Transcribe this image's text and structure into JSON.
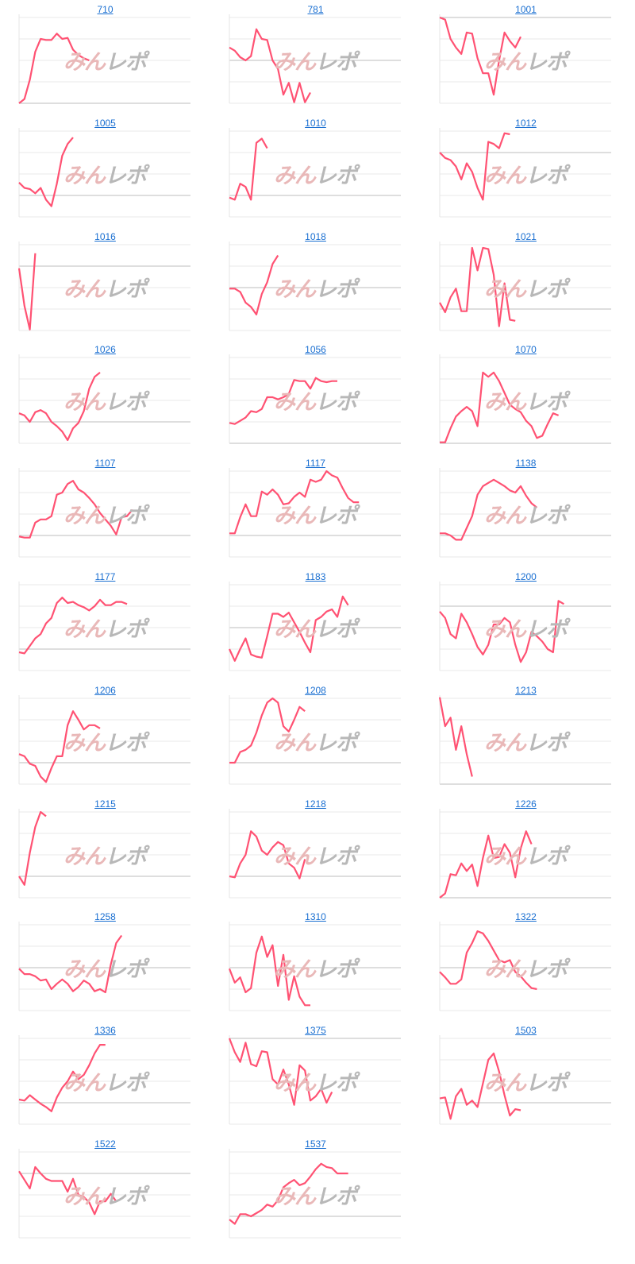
{
  "watermark": {
    "part1": "みん",
    "part2": "レポ"
  },
  "line_color": "#ff5273",
  "chart_data": [
    {
      "type": "line",
      "title": "710",
      "ylim": [
        0,
        4
      ],
      "baseline": 0,
      "values": [
        0,
        0.2,
        1.1,
        2.4,
        3.0,
        2.95,
        2.95,
        3.25,
        3.0,
        3.05,
        2.5,
        2.25,
        2.1,
        2.0
      ]
    },
    {
      "type": "line",
      "title": "781",
      "ylim": [
        0,
        4
      ],
      "baseline": 2,
      "values": [
        2.6,
        2.45,
        2.15,
        2.0,
        2.2,
        3.45,
        3.0,
        2.95,
        2.0,
        1.6,
        0.4,
        0.95,
        0.05,
        0.95,
        0.05,
        0.5
      ]
    },
    {
      "type": "line",
      "title": "1001",
      "ylim": [
        0,
        4
      ],
      "baseline": 4,
      "values": [
        4.0,
        3.9,
        3.0,
        2.6,
        2.3,
        3.3,
        3.25,
        2.1,
        1.4,
        1.4,
        0.4,
        2.0,
        3.3,
        2.9,
        2.6,
        3.1
      ]
    },
    {
      "type": "line",
      "title": "1005",
      "ylim": [
        0,
        4
      ],
      "baseline": 1,
      "values": [
        1.6,
        1.35,
        1.3,
        1.1,
        1.35,
        0.8,
        0.5,
        1.55,
        2.85,
        3.4,
        3.7
      ]
    },
    {
      "type": "line",
      "title": "1010",
      "ylim": [
        0,
        4
      ],
      "baseline": 1,
      "values": [
        0.9,
        0.8,
        1.55,
        1.4,
        0.8,
        3.45,
        3.65,
        3.2
      ]
    },
    {
      "type": "line",
      "title": "1012",
      "ylim": [
        0,
        4
      ],
      "baseline": 3,
      "values": [
        3.0,
        2.75,
        2.65,
        2.35,
        1.75,
        2.5,
        2.1,
        1.35,
        0.8,
        3.5,
        3.4,
        3.2,
        3.9,
        3.85
      ]
    },
    {
      "type": "line",
      "title": "1016",
      "ylim": [
        0,
        4
      ],
      "baseline": 3,
      "values": [
        2.9,
        1.15,
        0.05,
        3.6
      ]
    },
    {
      "type": "line",
      "title": "1018",
      "ylim": [
        0,
        4
      ],
      "baseline": 2,
      "values": [
        1.95,
        1.95,
        1.8,
        1.3,
        1.1,
        0.75,
        1.7,
        2.25,
        3.1,
        3.5
      ]
    },
    {
      "type": "line",
      "title": "1021",
      "ylim": [
        0,
        4
      ],
      "baseline": 1,
      "values": [
        1.3,
        0.85,
        1.55,
        1.95,
        0.9,
        0.9,
        3.85,
        2.8,
        3.85,
        3.8,
        2.6,
        0.2,
        2.2,
        0.5,
        0.45
      ]
    },
    {
      "type": "line",
      "title": "1026",
      "ylim": [
        0,
        4
      ],
      "baseline": 1,
      "values": [
        1.4,
        1.3,
        1.0,
        1.45,
        1.55,
        1.4,
        1.0,
        0.8,
        0.55,
        0.15,
        0.7,
        0.95,
        1.5,
        2.55,
        3.1,
        3.3
      ]
    },
    {
      "type": "line",
      "title": "1056",
      "ylim": [
        0,
        4
      ],
      "baseline": 0,
      "values": [
        0.95,
        0.9,
        1.05,
        1.2,
        1.5,
        1.45,
        1.6,
        2.15,
        2.15,
        2.05,
        2.15,
        2.3,
        2.95,
        2.9,
        2.9,
        2.55,
        3.05,
        2.9,
        2.85,
        2.9,
        2.9
      ]
    },
    {
      "type": "line",
      "title": "1070",
      "ylim": [
        0,
        4
      ],
      "baseline": 0,
      "values": [
        0.05,
        0.05,
        0.7,
        1.25,
        1.5,
        1.7,
        1.5,
        0.8,
        3.3,
        3.1,
        3.3,
        2.9,
        2.35,
        1.8,
        1.6,
        1.45,
        1.05,
        0.8,
        0.25,
        0.35,
        0.9,
        1.4,
        1.3
      ]
    },
    {
      "type": "line",
      "title": "1107",
      "ylim": [
        0,
        4
      ],
      "baseline": 1,
      "values": [
        0.95,
        0.9,
        0.9,
        1.6,
        1.75,
        1.75,
        1.9,
        2.9,
        3.0,
        3.4,
        3.55,
        3.15,
        3.0,
        2.75,
        2.45,
        2.05,
        1.75,
        1.45,
        1.05,
        1.85,
        1.9,
        2.2
      ]
    },
    {
      "type": "line",
      "title": "1117",
      "ylim": [
        0,
        4
      ],
      "baseline": 1,
      "values": [
        1.1,
        1.1,
        1.85,
        2.45,
        1.9,
        1.9,
        3.05,
        2.9,
        3.15,
        2.9,
        2.45,
        2.5,
        2.8,
        3.0,
        2.8,
        3.6,
        3.5,
        3.6,
        4.0,
        3.8,
        3.7,
        3.2,
        2.75,
        2.55,
        2.55
      ]
    },
    {
      "type": "line",
      "title": "1138",
      "ylim": [
        0,
        4
      ],
      "baseline": 1,
      "values": [
        1.1,
        1.1,
        1.0,
        0.8,
        0.8,
        1.35,
        1.9,
        2.9,
        3.3,
        3.45,
        3.6,
        3.45,
        3.3,
        3.1,
        3.0,
        3.3,
        2.85,
        2.5,
        2.3
      ]
    },
    {
      "type": "line",
      "title": "1177",
      "ylim": [
        0,
        4
      ],
      "baseline": 1,
      "values": [
        0.85,
        0.8,
        1.15,
        1.5,
        1.7,
        2.2,
        2.45,
        3.15,
        3.4,
        3.15,
        3.2,
        3.05,
        2.95,
        2.8,
        3.0,
        3.3,
        3.05,
        3.05,
        3.2,
        3.2,
        3.1
      ]
    },
    {
      "type": "line",
      "title": "1183",
      "ylim": [
        0,
        4
      ],
      "baseline": 2,
      "values": [
        1.0,
        0.45,
        1.0,
        1.5,
        0.75,
        0.65,
        0.6,
        1.6,
        2.65,
        2.65,
        2.5,
        2.7,
        2.25,
        1.8,
        1.3,
        0.85,
        2.35,
        2.5,
        2.75,
        2.85,
        2.5,
        3.45,
        3.05
      ]
    },
    {
      "type": "line",
      "title": "1200",
      "ylim": [
        0,
        4
      ],
      "baseline": 3,
      "values": [
        2.75,
        2.45,
        1.7,
        1.5,
        2.65,
        2.25,
        1.7,
        1.1,
        0.75,
        1.2,
        2.15,
        2.15,
        2.45,
        2.25,
        1.2,
        0.4,
        0.85,
        1.8,
        1.6,
        1.35,
        1.0,
        0.85,
        3.25,
        3.1
      ]
    },
    {
      "type": "line",
      "title": "1206",
      "ylim": [
        0,
        4
      ],
      "baseline": 1,
      "values": [
        1.4,
        1.3,
        0.95,
        0.85,
        0.35,
        0.1,
        0.75,
        1.3,
        1.3,
        2.75,
        3.4,
        3.0,
        2.55,
        2.75,
        2.75,
        2.6
      ]
    },
    {
      "type": "line",
      "title": "1208",
      "ylim": [
        0,
        4
      ],
      "baseline": 1,
      "values": [
        1.0,
        1.0,
        1.5,
        1.6,
        1.8,
        2.4,
        3.2,
        3.8,
        4.0,
        3.8,
        2.7,
        2.45,
        3.0,
        3.6,
        3.4
      ]
    },
    {
      "type": "line",
      "title": "1213",
      "ylim": [
        0,
        4
      ],
      "baseline": 0,
      "values": [
        4.05,
        2.7,
        3.1,
        1.6,
        2.7,
        1.4,
        0.35
      ]
    },
    {
      "type": "line",
      "title": "1215",
      "ylim": [
        0,
        4
      ],
      "baseline": 1,
      "values": [
        1.0,
        0.6,
        2.1,
        3.3,
        4.0,
        3.8
      ]
    },
    {
      "type": "line",
      "title": "1218",
      "ylim": [
        0,
        4
      ],
      "baseline": 1,
      "values": [
        1.0,
        0.95,
        1.6,
        2.0,
        3.1,
        2.85,
        2.2,
        2.0,
        2.35,
        2.6,
        2.45,
        1.6,
        1.4,
        0.9,
        1.8
      ]
    },
    {
      "type": "line",
      "title": "1226",
      "ylim": [
        0,
        4
      ],
      "baseline": 0,
      "values": [
        0.0,
        0.2,
        1.1,
        1.05,
        1.6,
        1.25,
        1.55,
        0.55,
        1.85,
        2.9,
        1.85,
        1.9,
        2.5,
        2.1,
        0.95,
        2.3,
        3.1,
        2.5
      ]
    },
    {
      "type": "line",
      "title": "1258",
      "ylim": [
        0,
        4
      ],
      "baseline": 2,
      "values": [
        1.95,
        1.7,
        1.7,
        1.6,
        1.4,
        1.45,
        1.0,
        1.25,
        1.45,
        1.25,
        0.9,
        1.1,
        1.4,
        1.25,
        0.9,
        1.0,
        0.85,
        2.15,
        3.15,
        3.5
      ]
    },
    {
      "type": "line",
      "title": "1310",
      "ylim": [
        0,
        4
      ],
      "baseline": 2,
      "values": [
        1.95,
        1.3,
        1.55,
        0.85,
        1.05,
        2.7,
        3.45,
        2.5,
        3.05,
        1.15,
        2.6,
        0.5,
        1.6,
        0.65,
        0.25,
        0.25
      ]
    },
    {
      "type": "line",
      "title": "1322",
      "ylim": [
        0,
        4
      ],
      "baseline": 2,
      "values": [
        1.8,
        1.55,
        1.25,
        1.25,
        1.45,
        2.7,
        3.15,
        3.7,
        3.6,
        3.25,
        2.8,
        2.35,
        2.25,
        2.35,
        1.8,
        1.6,
        1.3,
        1.05,
        1.0
      ]
    },
    {
      "type": "line",
      "title": "1336",
      "ylim": [
        0,
        4
      ],
      "baseline": 1,
      "values": [
        1.15,
        1.1,
        1.35,
        1.15,
        0.95,
        0.8,
        0.6,
        1.25,
        1.7,
        2.0,
        2.45,
        2.1,
        2.3,
        2.75,
        3.3,
        3.7,
        3.7
      ]
    },
    {
      "type": "line",
      "title": "1375",
      "ylim": [
        0,
        4
      ],
      "baseline": 4,
      "values": [
        4.0,
        3.35,
        2.9,
        3.8,
        2.8,
        2.7,
        3.4,
        3.35,
        2.1,
        1.85,
        2.55,
        1.85,
        0.9,
        2.75,
        2.5,
        1.1,
        1.3,
        1.65,
        1.0,
        1.5
      ]
    },
    {
      "type": "line",
      "title": "1503",
      "ylim": [
        0,
        4
      ],
      "baseline": 1,
      "values": [
        1.2,
        1.25,
        0.25,
        1.3,
        1.65,
        0.9,
        1.1,
        0.8,
        1.9,
        3.0,
        3.3,
        2.45,
        1.35,
        0.4,
        0.7,
        0.65
      ]
    },
    {
      "type": "line",
      "title": "1522",
      "ylim": [
        0,
        4
      ],
      "baseline": 3,
      "values": [
        3.1,
        2.7,
        2.3,
        3.3,
        3.0,
        2.75,
        2.65,
        2.65,
        2.65,
        2.15,
        2.75,
        2.0,
        1.9,
        1.65,
        1.1,
        1.7,
        1.7,
        2.05,
        1.7
      ]
    },
    {
      "type": "line",
      "title": "1537",
      "ylim": [
        0,
        4
      ],
      "baseline": 1,
      "values": [
        0.85,
        0.65,
        1.1,
        1.1,
        1.0,
        1.15,
        1.3,
        1.55,
        1.45,
        1.75,
        2.35,
        2.55,
        2.7,
        2.45,
        2.55,
        2.85,
        3.2,
        3.45,
        3.3,
        3.25,
        3.0,
        3.0,
        3.0
      ]
    }
  ]
}
